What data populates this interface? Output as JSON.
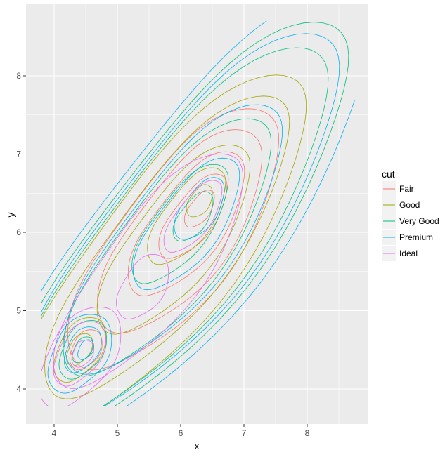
{
  "chart_data": {
    "type": "line",
    "subtype": "density2d contours (approximated as ellipses: center x, center y, semi-axis along x=y direction, semi-axis across)",
    "xlabel": "x",
    "ylabel": "y",
    "xlim": [
      3.56,
      8.97
    ],
    "ylim": [
      3.55,
      8.92
    ],
    "xticks": [
      "4",
      "5",
      "6",
      "7",
      "8"
    ],
    "yticks": [
      "4",
      "5",
      "6",
      "7",
      "8"
    ],
    "grid": true,
    "legend": {
      "title": "cut",
      "position": "right"
    },
    "series": [
      {
        "name": "Fair",
        "color": "#F8766D",
        "contours": [
          [
            6.3,
            6.3,
            0.3,
            0.15
          ],
          [
            6.2,
            6.2,
            0.7,
            0.3
          ],
          [
            6.1,
            6.1,
            1.2,
            0.5
          ],
          [
            6.0,
            6.0,
            1.7,
            0.7
          ],
          [
            5.9,
            5.9,
            2.2,
            0.85
          ],
          [
            4.5,
            4.5,
            0.3,
            0.2
          ]
        ]
      },
      {
        "name": "Good",
        "color": "#A3A500",
        "contours": [
          [
            6.3,
            6.4,
            0.25,
            0.15
          ],
          [
            4.4,
            4.5,
            0.25,
            0.15
          ],
          [
            4.4,
            4.5,
            0.5,
            0.3
          ],
          [
            6.1,
            6.2,
            0.8,
            0.35
          ],
          [
            5.9,
            5.9,
            1.6,
            0.6
          ],
          [
            5.8,
            5.8,
            2.6,
            0.85
          ],
          [
            5.7,
            5.7,
            3.1,
            1.0
          ]
        ]
      },
      {
        "name": "Very Good",
        "color": "#00BF7D",
        "contours": [
          [
            4.45,
            4.5,
            0.2,
            0.12
          ],
          [
            4.45,
            4.5,
            0.45,
            0.28
          ],
          [
            6.2,
            6.2,
            0.4,
            0.2
          ],
          [
            6.0,
            6.1,
            1.0,
            0.4
          ],
          [
            5.8,
            5.8,
            2.2,
            0.75
          ],
          [
            5.9,
            5.9,
            3.3,
            1.05
          ],
          [
            6.0,
            6.0,
            3.6,
            1.15
          ]
        ]
      },
      {
        "name": "Premium",
        "color": "#00B0F6",
        "contours": [
          [
            4.5,
            4.5,
            0.15,
            0.1
          ],
          [
            4.45,
            4.5,
            0.35,
            0.22
          ],
          [
            4.4,
            4.45,
            0.6,
            0.38
          ],
          [
            6.3,
            6.3,
            0.5,
            0.25
          ],
          [
            6.1,
            6.1,
            1.1,
            0.45
          ],
          [
            5.9,
            5.9,
            2.3,
            0.8
          ],
          [
            6.0,
            6.0,
            3.4,
            1.1
          ],
          [
            6.1,
            6.1,
            3.9,
            1.25
          ]
        ]
      },
      {
        "name": "Ideal",
        "color": "#E76BF3",
        "contours": [
          [
            4.45,
            4.45,
            0.2,
            0.14
          ],
          [
            4.4,
            4.45,
            0.5,
            0.3
          ],
          [
            4.4,
            4.4,
            0.8,
            0.45
          ],
          [
            5.4,
            5.3,
            0.5,
            0.3
          ],
          [
            6.2,
            6.2,
            0.6,
            0.25
          ],
          [
            5.5,
            5.5,
            2.0,
            0.7
          ]
        ]
      }
    ]
  }
}
